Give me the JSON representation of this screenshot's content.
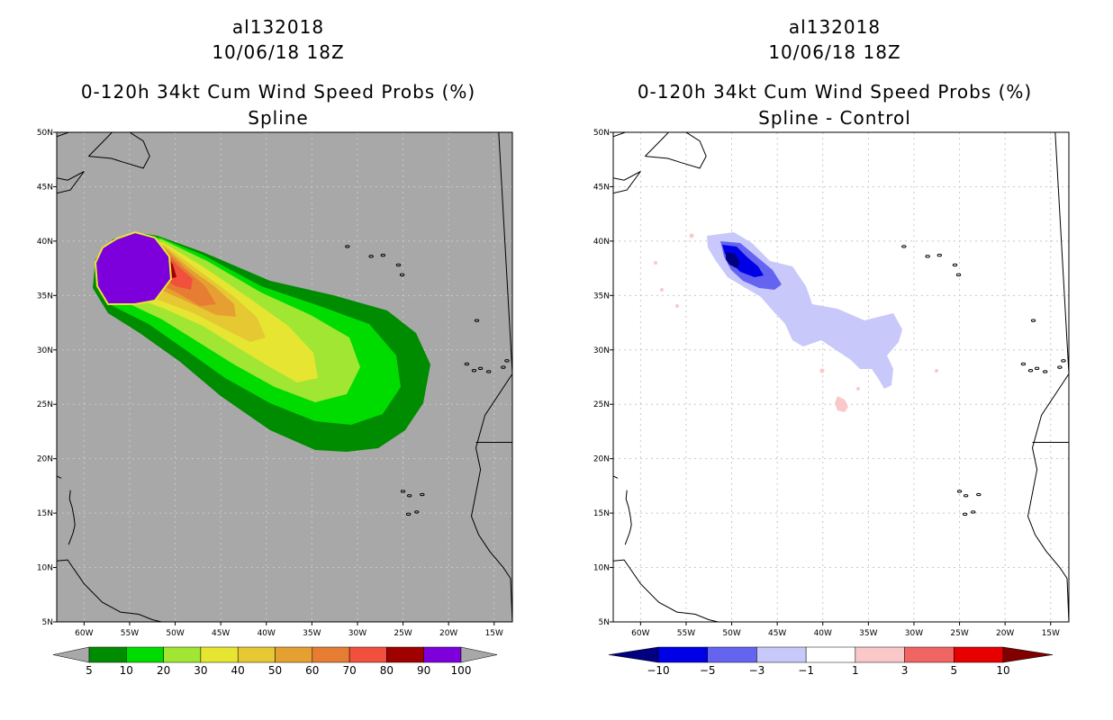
{
  "panels": [
    {
      "storm_id": "al132018",
      "date_time": "10/06/18 18Z",
      "product": "0-120h 34kt Cum Wind Speed Probs (%)",
      "subtitle": "Spline",
      "colorbar_labels": [
        "5",
        "10",
        "20",
        "30",
        "40",
        "50",
        "60",
        "70",
        "80",
        "90",
        "100"
      ],
      "colorbar_colors": [
        "#008c00",
        "#00dc00",
        "#a0e632",
        "#e6e632",
        "#e6c832",
        "#e6a032",
        "#e67d32",
        "#f0503c",
        "#a00000",
        "#7d00dc"
      ],
      "background_color": "#a8a8a8"
    },
    {
      "storm_id": "al132018",
      "date_time": "10/06/18 18Z",
      "product": "0-120h 34kt Cum Wind Speed Probs (%)",
      "subtitle": "Spline - Control",
      "colorbar_labels": [
        "−10",
        "−5",
        "−3",
        "−1",
        "1",
        "3",
        "5",
        "10"
      ],
      "colorbar_colors": [
        "#0000e6",
        "#6464f0",
        "#c8c8fa",
        "#ffffff",
        "#fac8c8",
        "#f06464",
        "#e60000"
      ],
      "background_color": "#ffffff"
    }
  ],
  "axes": {
    "lon_labels": [
      "60W",
      "55W",
      "50W",
      "45W",
      "40W",
      "35W",
      "30W",
      "25W",
      "20W",
      "15W"
    ],
    "lat_labels": [
      "5N",
      "10N",
      "15N",
      "20N",
      "25N",
      "30N",
      "35N",
      "40N",
      "45N",
      "50N"
    ],
    "lon_range": [
      -63,
      -13
    ],
    "lat_range": [
      5,
      50
    ]
  }
}
